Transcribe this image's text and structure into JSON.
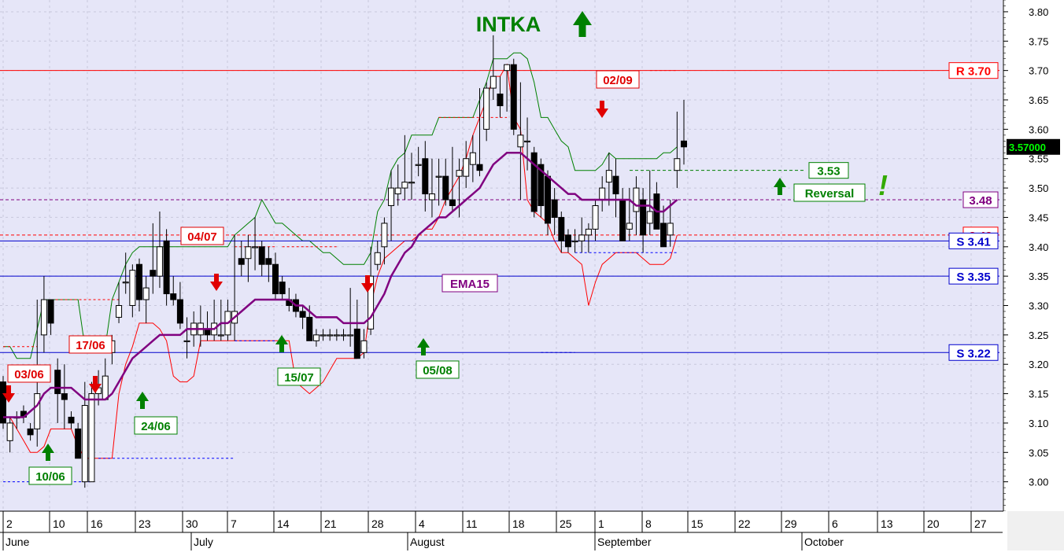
{
  "chart_data": {
    "type": "candlestick",
    "title": "INTKA",
    "title_signal": "up",
    "colors": {
      "background": "#e6e6f8",
      "resistance": "#ff0000",
      "support": "#0000cc",
      "ema": "#800080",
      "up_arrow": "#008000",
      "down_arrow": "#e00000",
      "pivot": "#800080",
      "reversal": "#008000"
    },
    "y_axis": {
      "min": 2.95,
      "max": 3.82,
      "tick_labels": [
        "3.00",
        "3.05",
        "3.10",
        "3.15",
        "3.20",
        "3.25",
        "3.30",
        "3.35",
        "3.40",
        "3.45",
        "3.50",
        "3.55",
        "3.60",
        "3.65",
        "3.70",
        "3.75",
        "3.80"
      ]
    },
    "x_axis": {
      "day_ticks": [
        "2",
        "10",
        "16",
        "23",
        "30",
        "7",
        "14",
        "21",
        "28",
        "4",
        "11",
        "18",
        "25",
        "1",
        "8",
        "15",
        "22",
        "29",
        "6",
        "13",
        "20",
        "27"
      ],
      "months": [
        "June",
        "July",
        "August",
        "September",
        "October"
      ]
    },
    "last_price": "3.57000",
    "grid": true,
    "candles": [
      {
        "o": 3.17,
        "h": 3.18,
        "l": 3.09,
        "c": 3.1
      },
      {
        "o": 3.07,
        "h": 3.11,
        "l": 3.05,
        "c": 3.1
      },
      {
        "o": 3.11,
        "h": 3.12,
        "l": 3.09,
        "c": 3.11
      },
      {
        "o": 3.12,
        "h": 3.13,
        "l": 3.1,
        "c": 3.11
      },
      {
        "o": 3.09,
        "h": 3.1,
        "l": 3.07,
        "c": 3.08
      },
      {
        "o": 3.09,
        "h": 3.31,
        "l": 3.06,
        "c": 3.15
      },
      {
        "o": 3.25,
        "h": 3.35,
        "l": 3.22,
        "c": 3.31
      },
      {
        "o": 3.31,
        "h": 3.31,
        "l": 3.25,
        "c": 3.27
      },
      {
        "o": 3.19,
        "h": 3.21,
        "l": 3.1,
        "c": 3.15
      },
      {
        "o": 3.15,
        "h": 3.2,
        "l": 3.09,
        "c": 3.14
      },
      {
        "o": 3.11,
        "h": 3.12,
        "l": 3.09,
        "c": 3.1
      },
      {
        "o": 3.09,
        "h": 3.1,
        "l": 3.04,
        "c": 3.04
      },
      {
        "o": 3.0,
        "h": 3.17,
        "l": 2.99,
        "c": 3.13
      },
      {
        "o": 3.0,
        "h": 3.17,
        "l": 3.0,
        "c": 3.15
      },
      {
        "o": 3.15,
        "h": 3.19,
        "l": 3.13,
        "c": 3.16
      },
      {
        "o": 3.14,
        "h": 3.21,
        "l": 3.14,
        "c": 3.18
      },
      {
        "o": 3.22,
        "h": 3.25,
        "l": 3.2,
        "c": 3.24
      },
      {
        "o": 3.28,
        "h": 3.34,
        "l": 3.27,
        "c": 3.3
      },
      {
        "o": 3.34,
        "h": 3.39,
        "l": 3.32,
        "c": 3.34
      },
      {
        "o": 3.3,
        "h": 3.37,
        "l": 3.28,
        "c": 3.36
      },
      {
        "o": 3.37,
        "h": 3.38,
        "l": 3.29,
        "c": 3.31
      },
      {
        "o": 3.31,
        "h": 3.35,
        "l": 3.27,
        "c": 3.33
      },
      {
        "o": 3.36,
        "h": 3.44,
        "l": 3.32,
        "c": 3.35
      },
      {
        "o": 3.35,
        "h": 3.46,
        "l": 3.33,
        "c": 3.4
      },
      {
        "o": 3.41,
        "h": 3.43,
        "l": 3.3,
        "c": 3.32
      },
      {
        "o": 3.32,
        "h": 3.35,
        "l": 3.3,
        "c": 3.31
      },
      {
        "o": 3.31,
        "h": 3.34,
        "l": 3.26,
        "c": 3.27
      },
      {
        "o": 3.24,
        "h": 3.28,
        "l": 3.21,
        "c": 3.24
      },
      {
        "o": 3.25,
        "h": 3.29,
        "l": 3.23,
        "c": 3.27
      },
      {
        "o": 3.25,
        "h": 3.3,
        "l": 3.23,
        "c": 3.27
      },
      {
        "o": 3.26,
        "h": 3.29,
        "l": 3.24,
        "c": 3.25
      },
      {
        "o": 3.25,
        "h": 3.31,
        "l": 3.24,
        "c": 3.27
      },
      {
        "o": 3.25,
        "h": 3.31,
        "l": 3.24,
        "c": 3.25
      },
      {
        "o": 3.25,
        "h": 3.31,
        "l": 3.24,
        "c": 3.29
      },
      {
        "o": 3.27,
        "h": 3.42,
        "l": 3.24,
        "c": 3.29
      },
      {
        "o": 3.38,
        "h": 3.41,
        "l": 3.35,
        "c": 3.37
      },
      {
        "o": 3.38,
        "h": 3.42,
        "l": 3.34,
        "c": 3.4
      },
      {
        "o": 3.4,
        "h": 3.45,
        "l": 3.36,
        "c": 3.4
      },
      {
        "o": 3.4,
        "h": 3.41,
        "l": 3.35,
        "c": 3.37
      },
      {
        "o": 3.38,
        "h": 3.4,
        "l": 3.34,
        "c": 3.37
      },
      {
        "o": 3.37,
        "h": 3.39,
        "l": 3.31,
        "c": 3.32
      },
      {
        "o": 3.34,
        "h": 3.35,
        "l": 3.31,
        "c": 3.32
      },
      {
        "o": 3.31,
        "h": 3.33,
        "l": 3.29,
        "c": 3.3
      },
      {
        "o": 3.31,
        "h": 3.32,
        "l": 3.28,
        "c": 3.29
      },
      {
        "o": 3.29,
        "h": 3.3,
        "l": 3.26,
        "c": 3.28
      },
      {
        "o": 3.28,
        "h": 3.3,
        "l": 3.24,
        "c": 3.24
      },
      {
        "o": 3.24,
        "h": 3.26,
        "l": 3.23,
        "c": 3.25
      },
      {
        "o": 3.25,
        "h": 3.26,
        "l": 3.24,
        "c": 3.25
      },
      {
        "o": 3.25,
        "h": 3.26,
        "l": 3.24,
        "c": 3.25
      },
      {
        "o": 3.25,
        "h": 3.26,
        "l": 3.24,
        "c": 3.25
      },
      {
        "o": 3.25,
        "h": 3.26,
        "l": 3.24,
        "c": 3.25
      },
      {
        "o": 3.25,
        "h": 3.33,
        "l": 3.23,
        "c": 3.25
      },
      {
        "o": 3.26,
        "h": 3.31,
        "l": 3.21,
        "c": 3.21
      },
      {
        "o": 3.22,
        "h": 3.26,
        "l": 3.21,
        "c": 3.24
      },
      {
        "o": 3.26,
        "h": 3.4,
        "l": 3.25,
        "c": 3.35
      },
      {
        "o": 3.37,
        "h": 3.41,
        "l": 3.36,
        "c": 3.39
      },
      {
        "o": 3.4,
        "h": 3.45,
        "l": 3.37,
        "c": 3.44
      },
      {
        "o": 3.47,
        "h": 3.53,
        "l": 3.41,
        "c": 3.5
      },
      {
        "o": 3.49,
        "h": 3.54,
        "l": 3.47,
        "c": 3.5
      },
      {
        "o": 3.5,
        "h": 3.59,
        "l": 3.48,
        "c": 3.51
      },
      {
        "o": 3.51,
        "h": 3.56,
        "l": 3.48,
        "c": 3.51
      },
      {
        "o": 3.54,
        "h": 3.57,
        "l": 3.52,
        "c": 3.54
      },
      {
        "o": 3.55,
        "h": 3.58,
        "l": 3.46,
        "c": 3.49
      },
      {
        "o": 3.48,
        "h": 3.55,
        "l": 3.45,
        "c": 3.49
      },
      {
        "o": 3.52,
        "h": 3.55,
        "l": 3.47,
        "c": 3.52
      },
      {
        "o": 3.52,
        "h": 3.55,
        "l": 3.47,
        "c": 3.48
      },
      {
        "o": 3.48,
        "h": 3.57,
        "l": 3.46,
        "c": 3.47
      },
      {
        "o": 3.52,
        "h": 3.55,
        "l": 3.45,
        "c": 3.53
      },
      {
        "o": 3.52,
        "h": 3.58,
        "l": 3.5,
        "c": 3.55
      },
      {
        "o": 3.54,
        "h": 3.59,
        "l": 3.51,
        "c": 3.56
      },
      {
        "o": 3.54,
        "h": 3.67,
        "l": 3.52,
        "c": 3.53
      },
      {
        "o": 3.6,
        "h": 3.68,
        "l": 3.58,
        "c": 3.67
      },
      {
        "o": 3.67,
        "h": 3.76,
        "l": 3.65,
        "c": 3.69
      },
      {
        "o": 3.66,
        "h": 3.69,
        "l": 3.62,
        "c": 3.64
      },
      {
        "o": 3.7,
        "h": 3.71,
        "l": 3.63,
        "c": 3.71
      },
      {
        "o": 3.71,
        "h": 3.72,
        "l": 3.59,
        "c": 3.6
      },
      {
        "o": 3.57,
        "h": 3.68,
        "l": 3.48,
        "c": 3.59
      },
      {
        "o": 3.58,
        "h": 3.62,
        "l": 3.53,
        "c": 3.58
      },
      {
        "o": 3.56,
        "h": 3.57,
        "l": 3.45,
        "c": 3.46
      },
      {
        "o": 3.54,
        "h": 3.55,
        "l": 3.45,
        "c": 3.47
      },
      {
        "o": 3.52,
        "h": 3.53,
        "l": 3.42,
        "c": 3.44
      },
      {
        "o": 3.48,
        "h": 3.5,
        "l": 3.42,
        "c": 3.45
      },
      {
        "o": 3.45,
        "h": 3.46,
        "l": 3.39,
        "c": 3.41
      },
      {
        "o": 3.42,
        "h": 3.43,
        "l": 3.39,
        "c": 3.4
      },
      {
        "o": 3.41,
        "h": 3.43,
        "l": 3.39,
        "c": 3.41
      },
      {
        "o": 3.41,
        "h": 3.45,
        "l": 3.39,
        "c": 3.42
      },
      {
        "o": 3.42,
        "h": 3.44,
        "l": 3.39,
        "c": 3.43
      },
      {
        "o": 3.43,
        "h": 3.48,
        "l": 3.41,
        "c": 3.47
      },
      {
        "o": 3.48,
        "h": 3.52,
        "l": 3.46,
        "c": 3.5
      },
      {
        "o": 3.51,
        "h": 3.56,
        "l": 3.47,
        "c": 3.53
      },
      {
        "o": 3.52,
        "h": 3.55,
        "l": 3.45,
        "c": 3.49
      },
      {
        "o": 3.48,
        "h": 3.5,
        "l": 3.41,
        "c": 3.41
      },
      {
        "o": 3.43,
        "h": 3.5,
        "l": 3.41,
        "c": 3.44
      },
      {
        "o": 3.46,
        "h": 3.52,
        "l": 3.42,
        "c": 3.5
      },
      {
        "o": 3.48,
        "h": 3.5,
        "l": 3.39,
        "c": 3.42
      },
      {
        "o": 3.44,
        "h": 3.53,
        "l": 3.42,
        "c": 3.46
      },
      {
        "o": 3.49,
        "h": 3.51,
        "l": 3.43,
        "c": 3.43
      },
      {
        "o": 3.44,
        "h": 3.47,
        "l": 3.4,
        "c": 3.4
      },
      {
        "o": 3.42,
        "h": 3.48,
        "l": 3.4,
        "c": 3.44
      },
      {
        "o": 3.53,
        "h": 3.63,
        "l": 3.5,
        "c": 3.55
      },
      {
        "o": 3.58,
        "h": 3.65,
        "l": 3.54,
        "c": 3.57
      }
    ],
    "ema15": [
      3.11,
      3.11,
      3.11,
      3.11,
      3.12,
      3.13,
      3.15,
      3.16,
      3.16,
      3.16,
      3.16,
      3.15,
      3.14,
      3.14,
      3.14,
      3.14,
      3.15,
      3.17,
      3.19,
      3.21,
      3.22,
      3.23,
      3.24,
      3.25,
      3.25,
      3.25,
      3.25,
      3.26,
      3.26,
      3.26,
      3.26,
      3.26,
      3.27,
      3.27,
      3.28,
      3.29,
      3.3,
      3.31,
      3.31,
      3.31,
      3.31,
      3.31,
      3.31,
      3.3,
      3.3,
      3.29,
      3.28,
      3.28,
      3.28,
      3.28,
      3.27,
      3.27,
      3.27,
      3.27,
      3.28,
      3.3,
      3.32,
      3.35,
      3.37,
      3.39,
      3.4,
      3.42,
      3.43,
      3.44,
      3.45,
      3.45,
      3.46,
      3.47,
      3.48,
      3.49,
      3.5,
      3.52,
      3.54,
      3.55,
      3.56,
      3.56,
      3.56,
      3.55,
      3.54,
      3.53,
      3.52,
      3.51,
      3.5,
      3.49,
      3.49,
      3.48,
      3.48,
      3.48,
      3.48,
      3.48,
      3.48,
      3.48,
      3.48,
      3.47,
      3.47,
      3.47,
      3.46,
      3.46,
      3.47,
      3.48
    ],
    "upper_band": [
      3.23,
      3.23,
      3.21,
      3.21,
      3.21,
      3.26,
      3.31,
      3.31,
      3.31,
      3.31,
      3.31,
      3.31,
      3.23,
      3.23,
      3.23,
      3.23,
      3.31,
      3.34,
      3.37,
      3.39,
      3.4,
      3.4,
      3.4,
      3.4,
      3.4,
      3.4,
      3.4,
      3.4,
      3.4,
      3.4,
      3.4,
      3.4,
      3.4,
      3.4,
      3.42,
      3.43,
      3.44,
      3.45,
      3.48,
      3.46,
      3.44,
      3.44,
      3.43,
      3.42,
      3.41,
      3.41,
      3.4,
      3.39,
      3.39,
      3.38,
      3.37,
      3.37,
      3.37,
      3.37,
      3.39,
      3.46,
      3.48,
      3.53,
      3.55,
      3.56,
      3.59,
      3.59,
      3.59,
      3.59,
      3.62,
      3.62,
      3.62,
      3.62,
      3.62,
      3.62,
      3.65,
      3.68,
      3.72,
      3.72,
      3.72,
      3.73,
      3.73,
      3.72,
      3.68,
      3.62,
      3.62,
      3.6,
      3.58,
      3.57,
      3.53,
      3.53,
      3.53,
      3.53,
      3.54,
      3.56,
      3.55,
      3.55,
      3.55,
      3.55,
      3.55,
      3.55,
      3.55,
      3.56,
      3.56,
      3.57
    ],
    "lower_band": [
      3.11,
      3.11,
      3.09,
      3.07,
      3.05,
      3.05,
      3.06,
      3.09,
      3.09,
      3.09,
      3.09,
      3.06,
      3.04,
      3.04,
      3.04,
      3.04,
      3.04,
      3.15,
      3.2,
      3.23,
      3.27,
      3.27,
      3.27,
      3.26,
      3.24,
      3.18,
      3.17,
      3.17,
      3.18,
      3.24,
      3.24,
      3.24,
      3.24,
      3.24,
      3.24,
      3.24,
      3.24,
      3.24,
      3.24,
      3.24,
      3.24,
      3.24,
      3.24,
      3.17,
      3.16,
      3.15,
      3.16,
      3.17,
      3.19,
      3.21,
      3.21,
      3.21,
      3.21,
      3.22,
      3.3,
      3.35,
      3.38,
      3.39,
      3.4,
      3.41,
      3.41,
      3.42,
      3.43,
      3.43,
      3.45,
      3.48,
      3.5,
      3.52,
      3.55,
      3.59,
      3.62,
      3.65,
      3.69,
      3.69,
      3.71,
      3.62,
      3.6,
      3.48,
      3.46,
      3.45,
      3.44,
      3.41,
      3.39,
      3.39,
      3.38,
      3.37,
      3.3,
      3.34,
      3.37,
      3.38,
      3.39,
      3.39,
      3.39,
      3.39,
      3.38,
      3.37,
      3.37,
      3.37,
      3.38,
      3.42
    ],
    "dashed_resistance": [
      {
        "from": 0,
        "to": 5,
        "y": 3.23
      },
      {
        "from": 7,
        "to": 17,
        "y": 3.31
      },
      {
        "from": 34,
        "to": 40,
        "y": 3.4
      },
      {
        "from": 41,
        "to": 49,
        "y": 3.4
      },
      {
        "from": 64,
        "to": 74,
        "y": 3.62
      },
      {
        "from": 95,
        "to": 99,
        "y": 3.7
      }
    ],
    "dashed_support": [
      {
        "from": 0,
        "to": 13,
        "y": 3.0
      },
      {
        "from": 14,
        "to": 34,
        "y": 3.04
      },
      {
        "from": 34,
        "to": 40,
        "y": 3.24
      },
      {
        "from": 79,
        "to": 84,
        "y": 3.22
      },
      {
        "from": 84,
        "to": 99,
        "y": 3.39
      }
    ],
    "levels": [
      {
        "value": 3.7,
        "label": "R 3.70",
        "kind": "resistance",
        "style": "solid"
      },
      {
        "value": 3.48,
        "label": "3.48",
        "kind": "pivot",
        "style": "dashed"
      },
      {
        "value": 3.42,
        "label": "3.42",
        "kind": "resistance",
        "style": "dashed"
      },
      {
        "value": 3.41,
        "label": "S 3.41",
        "kind": "support",
        "style": "solid"
      },
      {
        "value": 3.35,
        "label": "S 3.35",
        "kind": "support",
        "style": "solid"
      },
      {
        "value": 3.22,
        "label": "S 3.22",
        "kind": "support",
        "style": "solid"
      },
      {
        "value": 3.53,
        "label": "3.53",
        "kind": "reversal",
        "style": "dashed"
      }
    ],
    "signals": [
      {
        "i": 0,
        "dir": "down",
        "label": "03/06"
      },
      {
        "i": 9,
        "dir": "up",
        "label": "10/06"
      },
      {
        "i": 17,
        "dir": "down",
        "label": "17/06"
      },
      {
        "i": 25,
        "dir": "up",
        "label": "24/06"
      },
      {
        "i": 32,
        "dir": "down",
        "label": "04/07"
      },
      {
        "i": 48,
        "dir": "up",
        "label": "15/07"
      },
      {
        "i": 64,
        "dir": "down",
        "label": ""
      },
      {
        "i": 72,
        "dir": "up",
        "label": "05/08"
      },
      {
        "i": 99,
        "dir": "down",
        "label": "02/09"
      },
      {
        "i": 123,
        "dir": "up",
        "label": ""
      }
    ],
    "annotations": {
      "ema_label": "EMA15",
      "reversal_label": "Reversal",
      "exclamation": "!"
    }
  }
}
